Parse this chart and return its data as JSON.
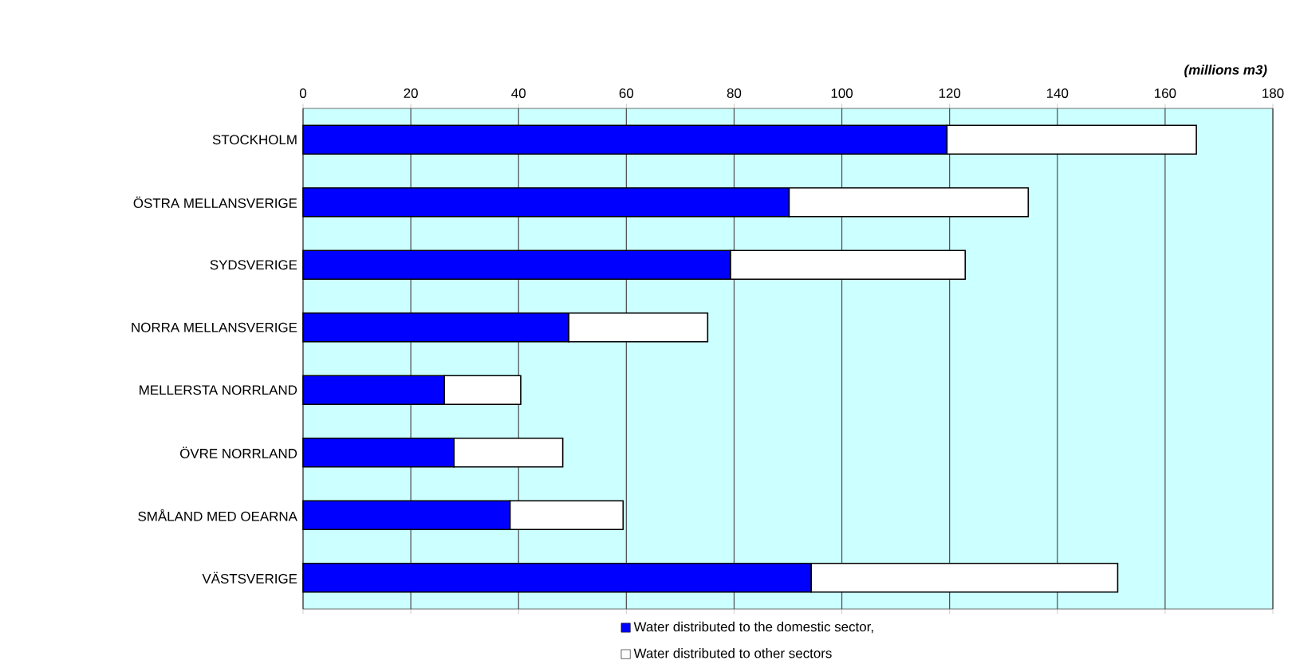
{
  "chart_data": {
    "type": "bar",
    "orientation": "horizontal",
    "stacked": true,
    "xlabel": "(millions m3)",
    "categories": [
      "STOCKHOLM",
      "ÖSTRA MELLANSVERIGE",
      "SYDSVERIGE",
      "NORRA MELLANSVERIGE",
      "MELLERSTA NORRLAND",
      "ÖVRE NORRLAND",
      "SMÅLAND MED OEARNA",
      "VÄSTSVERIGE"
    ],
    "series": [
      {
        "name": "Water distributed to the domestic sector,",
        "color": "#0000ff",
        "values": [
          119.5,
          90.2,
          79.3,
          49.3,
          26.2,
          28.0,
          38.4,
          94.3
        ]
      },
      {
        "name": "Water distributed to other sectors",
        "color": "#ffffff",
        "values": [
          46.3,
          44.4,
          43.6,
          25.8,
          14.2,
          20.2,
          21.0,
          56.9
        ]
      }
    ],
    "xlim": [
      0,
      180
    ],
    "xticks": [
      0,
      20,
      40,
      60,
      80,
      100,
      120,
      140,
      160,
      180
    ],
    "grid": "x",
    "legend": "bottom"
  }
}
